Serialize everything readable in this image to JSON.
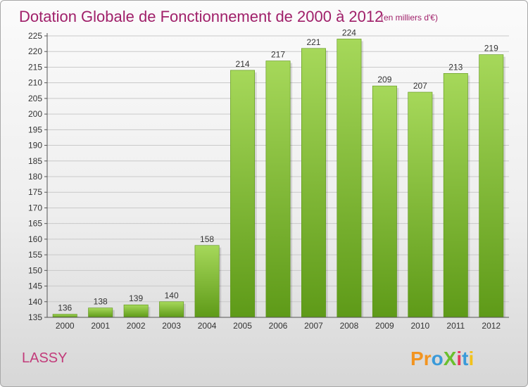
{
  "chart_data": {
    "type": "bar",
    "title": "Dotation Globale de Fonctionnement de 2000 à 2012",
    "subtitle": "(en milliers d'€)",
    "categories": [
      "2000",
      "2001",
      "2002",
      "2003",
      "2004",
      "2005",
      "2006",
      "2007",
      "2008",
      "2009",
      "2010",
      "2011",
      "2012"
    ],
    "values": [
      136,
      138,
      139,
      140,
      158,
      214,
      217,
      221,
      224,
      209,
      207,
      213,
      219
    ],
    "ylim": [
      135,
      225
    ],
    "yticks": [
      135,
      140,
      145,
      150,
      155,
      160,
      165,
      170,
      175,
      180,
      185,
      190,
      195,
      200,
      205,
      210,
      215,
      220,
      225
    ],
    "xlabel": "",
    "ylabel": "",
    "grid": true,
    "bar_color": "#7cc02c",
    "bar_color_light": "#a6d85a",
    "bar_color_dark": "#5e9a18",
    "title_color": "#a0206a"
  },
  "commune": "LASSY",
  "logo": {
    "text": "ProXiti",
    "letters": [
      {
        "ch": "P",
        "color": "#f29420"
      },
      {
        "ch": "r",
        "color": "#f29420"
      },
      {
        "ch": "o",
        "color": "#3a9ad9"
      },
      {
        "ch": "X",
        "color": "#6abf2e"
      },
      {
        "ch": "i",
        "color": "#e8365d"
      },
      {
        "ch": "t",
        "color": "#3a9ad9"
      },
      {
        "ch": "i",
        "color": "#f2c21b"
      }
    ]
  }
}
